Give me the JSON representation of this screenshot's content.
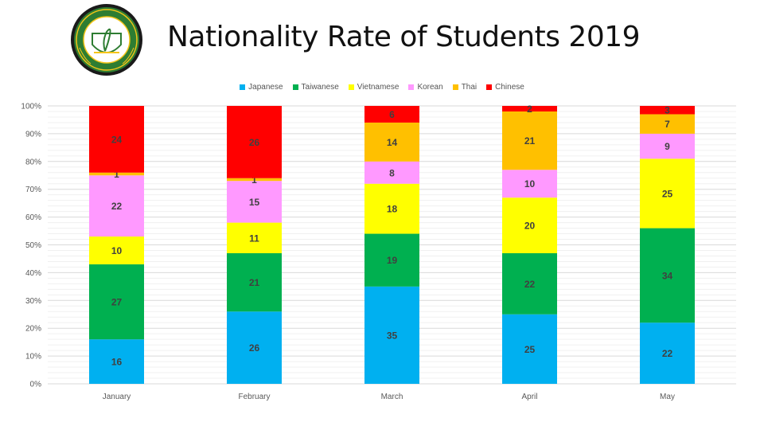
{
  "title": "Nationality Rate of Students 2019",
  "logo": {
    "alt_text": "PHILIPPINE EDUCATION CENTER"
  },
  "chart_data": {
    "type": "bar",
    "stacked": "percent",
    "title": "",
    "xlabel": "",
    "ylabel": "",
    "ylim": [
      0,
      100
    ],
    "yticks": [
      "0%",
      "10%",
      "20%",
      "30%",
      "40%",
      "50%",
      "60%",
      "70%",
      "80%",
      "90%",
      "100%"
    ],
    "grid": true,
    "legend_position": "top",
    "categories": [
      "January",
      "February",
      "March",
      "April",
      "May"
    ],
    "series": [
      {
        "name": "Japanese",
        "color": "#00B0F0",
        "values": [
          16,
          26,
          35,
          25,
          22
        ]
      },
      {
        "name": "Taiwanese",
        "color": "#00B050",
        "values": [
          27,
          21,
          19,
          22,
          34
        ]
      },
      {
        "name": "Vietnamese",
        "color": "#FFFF00",
        "values": [
          10,
          11,
          18,
          20,
          25
        ]
      },
      {
        "name": "Korean",
        "color": "#FF99FF",
        "values": [
          22,
          15,
          8,
          10,
          9
        ]
      },
      {
        "name": "Thai",
        "color": "#FFC000",
        "values": [
          1,
          1,
          14,
          21,
          7
        ]
      },
      {
        "name": "Chinese",
        "color": "#FF0000",
        "values": [
          24,
          26,
          6,
          2,
          3
        ]
      }
    ]
  }
}
